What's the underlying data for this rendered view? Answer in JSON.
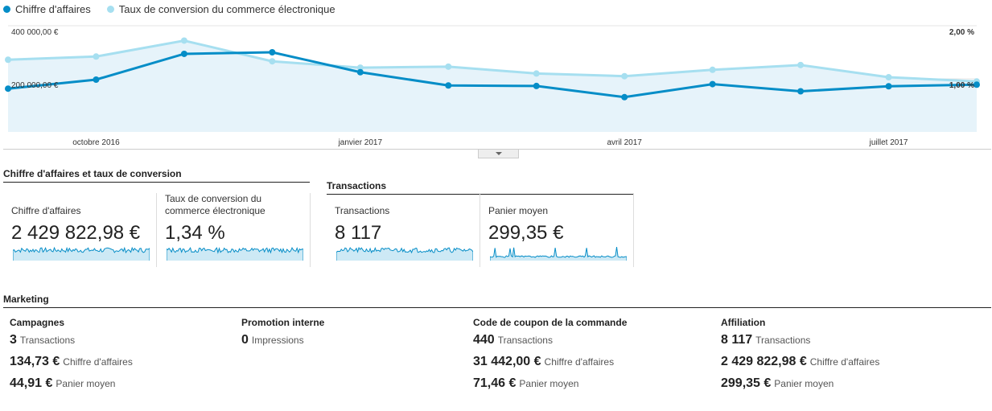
{
  "legend": {
    "items": [
      {
        "label": "Chiffre d'affaires",
        "color": "#058dc7"
      },
      {
        "label": "Taux de conversion du commerce électronique",
        "color": "#a6dff0"
      }
    ]
  },
  "chart_data": {
    "type": "line",
    "x": [
      "2016-09",
      "2016-10",
      "2016-11",
      "2016-12",
      "2017-01",
      "2017-02",
      "2017-03",
      "2017-04",
      "2017-05",
      "2017-06",
      "2017-07",
      "2017-08"
    ],
    "x_ticks": [
      "octobre 2016",
      "janvier 2017",
      "avril 2017",
      "juillet 2017"
    ],
    "y_left_ticks": [
      "400 000,00 €",
      "200 000,00 €"
    ],
    "y_right_ticks": [
      "2,00 %",
      "1,00 %"
    ],
    "ylim_left": [
      0,
      400000
    ],
    "ylim_right": [
      0,
      2.0
    ],
    "series": [
      {
        "name": "Chiffre d'affaires",
        "axis": "left",
        "color": "#058dc7",
        "values": [
          163000,
          197000,
          294000,
          300000,
          225000,
          175000,
          173000,
          131000,
          180000,
          153000,
          172000,
          178000
        ]
      },
      {
        "name": "Taux de conversion du commerce électronique",
        "axis": "right",
        "color": "#a6dff0",
        "values": [
          1.36,
          1.42,
          1.72,
          1.33,
          1.21,
          1.23,
          1.1,
          1.05,
          1.17,
          1.26,
          1.03,
          0.95
        ]
      }
    ],
    "grid": true
  },
  "summary": {
    "group1_title": "Chiffre d'affaires et taux de conversion",
    "group2_title": "Transactions",
    "cards": [
      {
        "label": "Chiffre d'affaires",
        "value": "2 429 822,98 €"
      },
      {
        "label": "Taux de conversion du commerce électronique",
        "value": "1,34 %"
      },
      {
        "label": "Transactions",
        "value": "8 117"
      },
      {
        "label": "Panier moyen",
        "value": "299,35 €"
      }
    ]
  },
  "marketing": {
    "title": "Marketing",
    "columns": [
      {
        "title": "Campagnes",
        "rows": [
          {
            "value": "3",
            "label": "Transactions"
          },
          {
            "value": "134,73 €",
            "label": "Chiffre d'affaires"
          },
          {
            "value": "44,91 €",
            "label": "Panier moyen"
          }
        ]
      },
      {
        "title": "Promotion interne",
        "rows": [
          {
            "value": "0",
            "label": "Impressions"
          }
        ]
      },
      {
        "title": "Code de coupon de la commande",
        "rows": [
          {
            "value": "440",
            "label": "Transactions"
          },
          {
            "value": "31 442,00 €",
            "label": "Chiffre d'affaires"
          },
          {
            "value": "71,46 €",
            "label": "Panier moyen"
          }
        ]
      },
      {
        "title": "Affiliation",
        "rows": [
          {
            "value": "8 117",
            "label": "Transactions"
          },
          {
            "value": "2 429 822,98 €",
            "label": "Chiffre d'affaires"
          },
          {
            "value": "299,35 €",
            "label": "Panier moyen"
          }
        ]
      }
    ]
  }
}
